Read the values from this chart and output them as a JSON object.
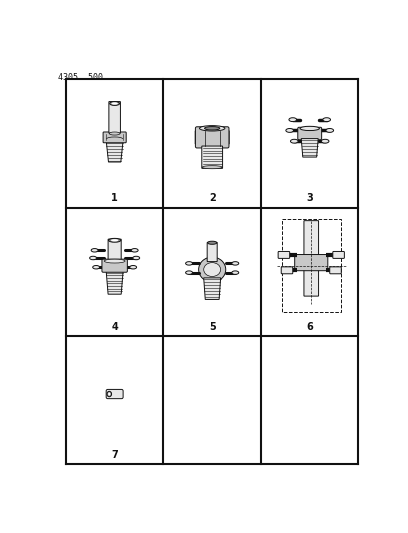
{
  "background_color": "#ffffff",
  "grid_color": "#111111",
  "cell_labels": [
    "1",
    "2",
    "3",
    "4",
    "5",
    "6",
    "7",
    "",
    ""
  ],
  "line_color": "#111111",
  "fill_light": "#e8e8e8",
  "fill_mid": "#c8c8c8",
  "fill_dark": "#888888",
  "header_text": "4305  500",
  "grid_lw": 1.5
}
